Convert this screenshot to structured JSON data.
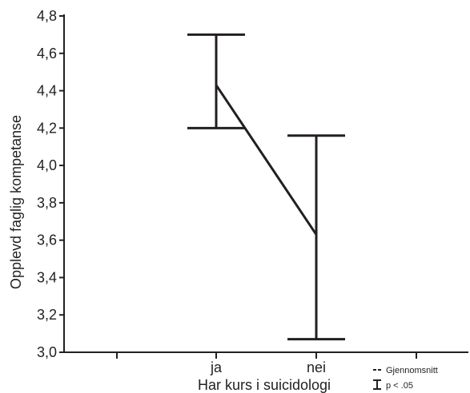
{
  "chart_data": {
    "type": "line",
    "title": "",
    "xlabel": "Har kurs i suicidologi",
    "ylabel": "Opplevd faglig kompetanse",
    "categories": [
      "ja",
      "nei"
    ],
    "ylim": [
      3.0,
      4.8
    ],
    "yticks": [
      "3,0",
      "3,2",
      "3,4",
      "3,6",
      "3,8",
      "4,0",
      "4,2",
      "4,4",
      "4,6",
      "4,8"
    ],
    "yticks_values": [
      3.0,
      3.2,
      3.4,
      3.6,
      3.8,
      4.0,
      4.2,
      4.4,
      4.6,
      4.8
    ],
    "grid": false,
    "series": [
      {
        "means": [
          4.43,
          3.63
        ],
        "ci_low": [
          4.2,
          3.07
        ],
        "ci_high": [
          4.7,
          4.16
        ]
      }
    ],
    "legend": {
      "position": "bottom-right",
      "entries": [
        "Gjennomsnitt",
        "p < .05"
      ]
    },
    "colors": {
      "ink": "#231f20"
    }
  }
}
